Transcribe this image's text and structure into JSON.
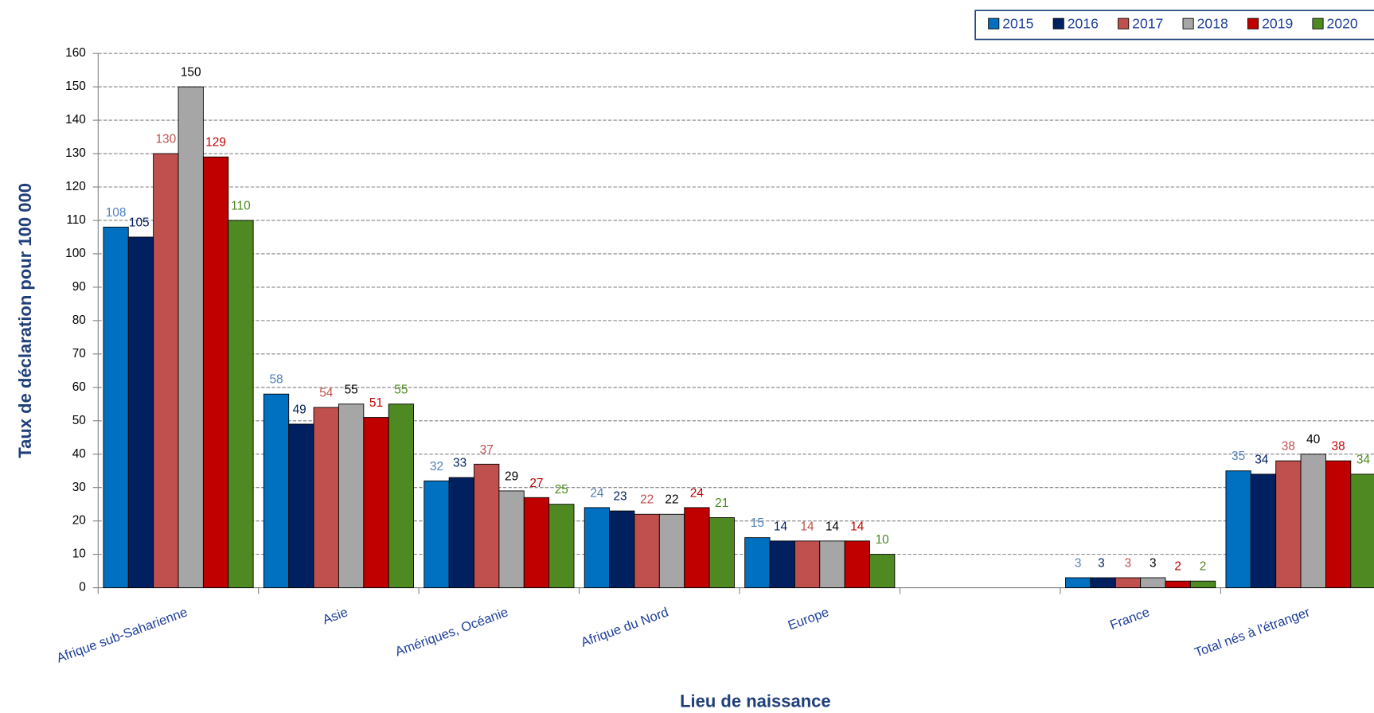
{
  "chart_data": {
    "type": "bar",
    "xlabel": "Lieu de naissance",
    "ylabel": "Taux de déclaration pour 100 000",
    "categories": [
      "Afrique sub-Saharienne",
      "Asie",
      "Amériques, Océanie",
      "Afrique du Nord",
      "Europe",
      null,
      "France",
      "Total nés à l'étranger"
    ],
    "series": [
      {
        "name": "2015",
        "color": "#0070c0",
        "label_color": "#4f81bd",
        "values": [
          108,
          58,
          32,
          24,
          15,
          null,
          3,
          35
        ]
      },
      {
        "name": "2016",
        "color": "#002060",
        "label_color": "#002060",
        "values": [
          105,
          49,
          33,
          23,
          14,
          null,
          3,
          34
        ]
      },
      {
        "name": "2017",
        "color": "#c0504d",
        "label_color": "#c0504d",
        "values": [
          130,
          54,
          37,
          22,
          14,
          null,
          3,
          38
        ]
      },
      {
        "name": "2018",
        "color": "#a6a6a6",
        "label_color": "#000000",
        "values": [
          150,
          55,
          29,
          22,
          14,
          null,
          3,
          40
        ]
      },
      {
        "name": "2019",
        "color": "#c00000",
        "label_color": "#c00000",
        "values": [
          129,
          51,
          27,
          24,
          14,
          null,
          2,
          38
        ]
      },
      {
        "name": "2020",
        "color": "#4e8a21",
        "label_color": "#4e8a21",
        "values": [
          110,
          55,
          25,
          21,
          10,
          null,
          2,
          34
        ]
      }
    ],
    "ylim": [
      0,
      160
    ],
    "yticks": [
      0,
      10,
      20,
      30,
      40,
      50,
      60,
      70,
      80,
      90,
      100,
      110,
      120,
      130,
      140,
      150,
      160
    ],
    "grid": true,
    "legend": "top-right"
  }
}
